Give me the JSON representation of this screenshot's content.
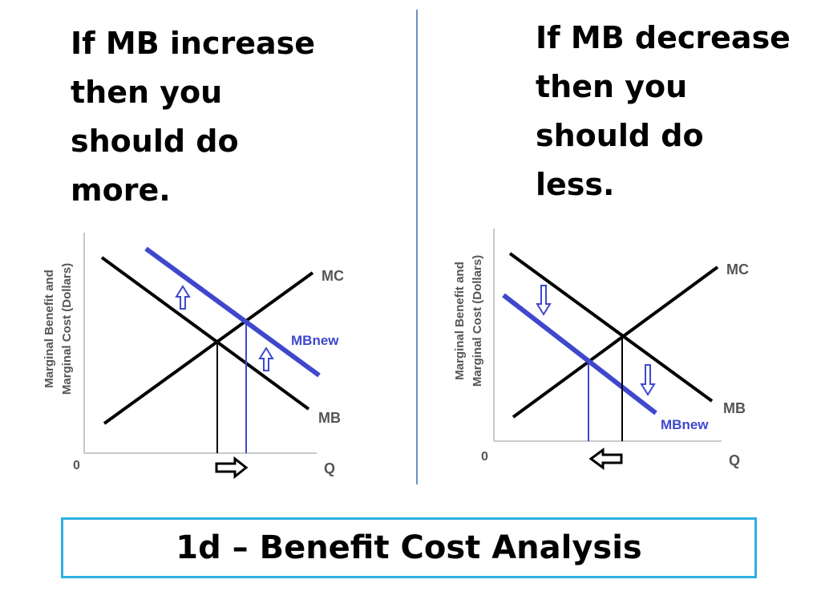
{
  "left_panel": {
    "heading": "If MB increase\nthen you\nshould do\nmore.",
    "y_axis_label_line1": "Marginal Benefit and",
    "y_axis_label_line2": "Marginal Cost (Dollars)",
    "origin_label": "0",
    "x_axis_label": "Q",
    "mc_label": "MC",
    "mb_label": "MB",
    "mbnew_label": "MBnew",
    "shift_direction": "up",
    "quantity_change_arrow": "right"
  },
  "right_panel": {
    "heading": "If MB decrease\nthen you\nshould do\nless.",
    "y_axis_label_line1": "Marginal Benefit and",
    "y_axis_label_line2": "Marginal Cost (Dollars)",
    "origin_label": "0",
    "x_axis_label": "Q",
    "mc_label": "MC",
    "mb_label": "MB",
    "mbnew_label": "MBnew",
    "shift_direction": "down",
    "quantity_change_arrow": "left"
  },
  "title": "1d – Benefit Cost Analysis",
  "colors": {
    "curve": "#000000",
    "mbnew": "#3f48cc",
    "axis": "#c8c8c8",
    "divider": "#6f8fbf",
    "title_border": "#2cb1de"
  }
}
